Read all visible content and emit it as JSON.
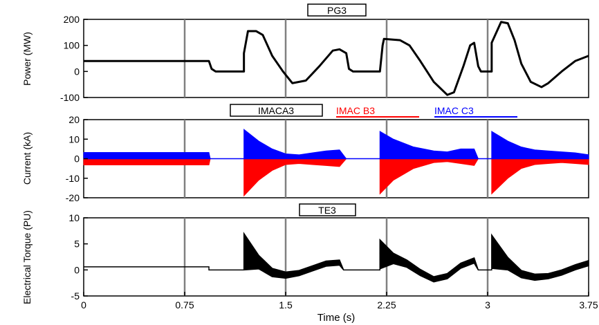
{
  "colors": {
    "black": "#000000",
    "red": "#ff0000",
    "blue": "#0000ff",
    "grid": "#808080"
  },
  "chart_data": [
    {
      "type": "line",
      "panel": "power",
      "title": "PG3",
      "ylabel": "Power (MW)",
      "ylim": [
        -100,
        200
      ],
      "yticks": [
        "200",
        "100",
        "0",
        "-100"
      ],
      "ytick_values": [
        200,
        100,
        0,
        -100
      ],
      "legend": [
        {
          "label": "PG3",
          "color": "#000000"
        }
      ],
      "series": [
        {
          "name": "PG3",
          "color": "#000000",
          "x": [
            0,
            0.93,
            0.95,
            0.98,
            1.19,
            1.19,
            1.22,
            1.28,
            1.33,
            1.4,
            1.48,
            1.55,
            1.65,
            1.75,
            1.85,
            1.9,
            1.95,
            1.97,
            2.0,
            2.2,
            2.22,
            2.23,
            2.35,
            2.42,
            2.5,
            2.6,
            2.7,
            2.75,
            2.82,
            2.87,
            2.9,
            2.93,
            2.95,
            2.98,
            3.03,
            3.03,
            3.1,
            3.15,
            3.2,
            3.25,
            3.32,
            3.4,
            3.45,
            3.55,
            3.65,
            3.75
          ],
          "y": [
            40,
            40,
            10,
            0,
            0,
            70,
            155,
            155,
            140,
            60,
            0,
            -45,
            -35,
            20,
            80,
            85,
            70,
            10,
            0,
            0,
            100,
            125,
            120,
            100,
            40,
            -40,
            -90,
            -80,
            20,
            100,
            110,
            20,
            0,
            0,
            0,
            110,
            190,
            185,
            120,
            30,
            -40,
            -60,
            -45,
            0,
            40,
            60
          ]
        }
      ]
    },
    {
      "type": "area",
      "panel": "current",
      "ylabel": "Current (kA)",
      "ylim": [
        -20,
        20
      ],
      "yticks": [
        "20",
        "10",
        "0",
        "-10",
        "-20"
      ],
      "ytick_values": [
        20,
        10,
        0,
        -10,
        -20
      ],
      "legend": [
        {
          "label": "IMACA3",
          "color": "#000000"
        },
        {
          "label": "IMAC B3",
          "color": "#ff0000"
        },
        {
          "label": "IMAC C3",
          "color": "#0000ff"
        }
      ],
      "series": [
        {
          "name": "IMAC B3",
          "color": "#ff0000",
          "envelope": "lower",
          "x": [
            0,
            0.93,
            0.94,
            1.19,
            1.19,
            1.3,
            1.4,
            1.5,
            1.6,
            1.7,
            1.8,
            1.9,
            1.95,
            2.0,
            2.2,
            2.2,
            2.3,
            2.45,
            2.6,
            2.7,
            2.8,
            2.9,
            2.93,
            3.03,
            3.03,
            3.15,
            3.25,
            3.35,
            3.45,
            3.55,
            3.65,
            3.75
          ],
          "y": [
            -3.2,
            -3.2,
            0,
            0,
            -19,
            -11,
            -6,
            -3,
            -2.5,
            -3,
            -3.5,
            -4,
            0,
            0,
            0,
            -18,
            -11,
            -5,
            -2,
            -1.5,
            -2.5,
            -3.5,
            0,
            0,
            -18,
            -10,
            -5,
            -3,
            -2.5,
            -2,
            -2.5,
            -3
          ]
        },
        {
          "name": "IMAC C3",
          "color": "#0000ff",
          "envelope": "upper",
          "x": [
            0,
            0.93,
            0.94,
            1.19,
            1.19,
            1.3,
            1.4,
            1.5,
            1.6,
            1.7,
            1.8,
            1.9,
            1.95,
            2.0,
            2.2,
            2.2,
            2.3,
            2.45,
            2.6,
            2.7,
            2.8,
            2.9,
            2.93,
            3.03,
            3.03,
            3.15,
            3.25,
            3.35,
            3.45,
            3.55,
            3.65,
            3.75
          ],
          "y": [
            3.2,
            3.2,
            0,
            0,
            15,
            9,
            5,
            2.5,
            2,
            3,
            4,
            4.5,
            0,
            0,
            0,
            14,
            10,
            6,
            4,
            3.5,
            5,
            5,
            0,
            0,
            14,
            9,
            6,
            4.5,
            4,
            3.5,
            3,
            2
          ]
        }
      ]
    },
    {
      "type": "line",
      "panel": "torque",
      "title": "TE3",
      "ylabel": "Electrical Torque (PU)",
      "xlabel": "Time (s)",
      "ylim": [
        -5,
        10
      ],
      "xlim": [
        0,
        3.75
      ],
      "yticks": [
        "10",
        "5",
        "0",
        "-5"
      ],
      "ytick_values": [
        10,
        5,
        0,
        -5
      ],
      "xticks": [
        "0",
        "0.75",
        "1.5",
        "2.25",
        "3",
        "3.75"
      ],
      "xtick_values": [
        0,
        0.75,
        1.5,
        2.25,
        3,
        3.75
      ],
      "legend": [
        {
          "label": "TE3",
          "color": "#000000"
        }
      ],
      "series": [
        {
          "name": "TE3",
          "color": "#000000",
          "band": true,
          "x": [
            0,
            0.93,
            0.93,
            1.19,
            1.19,
            1.3,
            1.4,
            1.5,
            1.6,
            1.7,
            1.8,
            1.9,
            1.93,
            2.2,
            2.2,
            2.3,
            2.4,
            2.5,
            2.6,
            2.7,
            2.8,
            2.9,
            2.93,
            3.03,
            3.03,
            3.15,
            3.25,
            3.35,
            3.45,
            3.55,
            3.65,
            3.75
          ],
          "y": [
            0.6,
            0.6,
            0,
            0,
            3.5,
            1.5,
            -0.5,
            -1,
            -0.6,
            0.3,
            1.2,
            1.4,
            0,
            0,
            3,
            2.2,
            1.2,
            -0.5,
            -1.8,
            -1.2,
            0.8,
            1.8,
            0,
            0,
            3.5,
            1.2,
            -0.8,
            -1.4,
            -1.2,
            -0.5,
            0.5,
            1.3
          ],
          "band_half": [
            0,
            0,
            0,
            0,
            3.5,
            1.3,
            0.8,
            0.6,
            0.5,
            0.5,
            0.5,
            0.5,
            0,
            0,
            2.8,
            1.0,
            0.7,
            0.6,
            0.5,
            0.5,
            0.5,
            0.5,
            0,
            0,
            3.2,
            1.2,
            0.7,
            0.6,
            0.5,
            0.5,
            0.5,
            0.5
          ]
        }
      ]
    }
  ]
}
